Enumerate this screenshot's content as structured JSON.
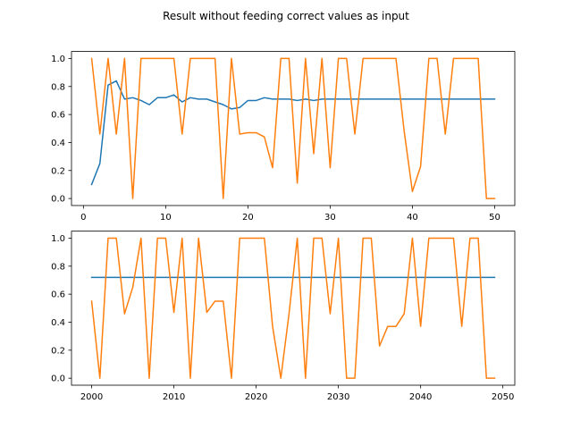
{
  "figure": {
    "suptitle": "Result without feeding correct values as input"
  },
  "colors": {
    "series_1": "#1f77b4",
    "series_2": "#ff7f0e",
    "axes": "#000000",
    "background": "#ffffff"
  },
  "chart_data": [
    {
      "type": "line",
      "title": "",
      "xlabel": "",
      "ylabel": "",
      "xlim": [
        -1.45,
        52.45
      ],
      "ylim": [
        -0.05,
        1.05
      ],
      "xticks": [
        0,
        10,
        20,
        30,
        40,
        50
      ],
      "xtick_labels": [
        "0",
        "10",
        "20",
        "30",
        "40",
        "50"
      ],
      "yticks": [
        0.0,
        0.2,
        0.4,
        0.6,
        0.8,
        1.0
      ],
      "ytick_labels": [
        "0.0",
        "0.2",
        "0.4",
        "0.6",
        "0.8",
        "1.0"
      ],
      "grid": false,
      "x": [
        1,
        2,
        3,
        4,
        5,
        6,
        7,
        8,
        9,
        10,
        11,
        12,
        13,
        14,
        15,
        16,
        17,
        18,
        19,
        20,
        21,
        22,
        23,
        24,
        25,
        26,
        27,
        28,
        29,
        30,
        31,
        32,
        33,
        34,
        35,
        36,
        37,
        38,
        39,
        40,
        41,
        42,
        43,
        44,
        45,
        46,
        47,
        48,
        49,
        50
      ],
      "series": [
        {
          "color": "#1f77b4",
          "values": [
            0.1,
            0.25,
            0.81,
            0.84,
            0.71,
            0.72,
            0.7,
            0.67,
            0.72,
            0.72,
            0.74,
            0.69,
            0.72,
            0.71,
            0.71,
            0.69,
            0.67,
            0.64,
            0.65,
            0.7,
            0.7,
            0.72,
            0.71,
            0.71,
            0.71,
            0.7,
            0.71,
            0.7,
            0.71,
            0.71,
            0.71,
            0.71,
            0.71,
            0.71,
            0.71,
            0.71,
            0.71,
            0.71,
            0.71,
            0.71,
            0.71,
            0.71,
            0.71,
            0.71,
            0.71,
            0.71,
            0.71,
            0.71,
            0.71,
            0.71
          ]
        },
        {
          "color": "#ff7f0e",
          "values": [
            1.0,
            0.46,
            1.0,
            0.46,
            1.0,
            0.0,
            1.0,
            1.0,
            1.0,
            1.0,
            1.0,
            0.46,
            1.0,
            1.0,
            1.0,
            1.0,
            0.0,
            1.0,
            0.46,
            0.47,
            0.47,
            0.44,
            0.22,
            1.0,
            1.0,
            0.11,
            1.0,
            0.32,
            1.0,
            0.22,
            1.0,
            1.0,
            0.46,
            1.0,
            1.0,
            1.0,
            1.0,
            1.0,
            0.48,
            0.05,
            0.23,
            1.0,
            1.0,
            0.46,
            1.0,
            1.0,
            1.0,
            1.0,
            0.0,
            0.0
          ]
        }
      ]
    },
    {
      "type": "line",
      "title": "",
      "xlabel": "",
      "ylabel": "",
      "xlim": [
        1997.55,
        2051.45
      ],
      "ylim": [
        -0.05,
        1.05
      ],
      "xticks": [
        2000,
        2010,
        2020,
        2030,
        2040,
        2050
      ],
      "xtick_labels": [
        "2000",
        "2010",
        "2020",
        "2030",
        "2040",
        "2050"
      ],
      "yticks": [
        0.0,
        0.2,
        0.4,
        0.6,
        0.8,
        1.0
      ],
      "ytick_labels": [
        "0.0",
        "0.2",
        "0.4",
        "0.6",
        "0.8",
        "1.0"
      ],
      "grid": false,
      "x": [
        2000,
        2001,
        2002,
        2003,
        2004,
        2005,
        2006,
        2007,
        2008,
        2009,
        2010,
        2011,
        2012,
        2013,
        2014,
        2015,
        2016,
        2017,
        2018,
        2019,
        2020,
        2021,
        2022,
        2023,
        2024,
        2025,
        2026,
        2027,
        2028,
        2029,
        2030,
        2031,
        2032,
        2033,
        2034,
        2035,
        2036,
        2037,
        2038,
        2039,
        2040,
        2041,
        2042,
        2043,
        2044,
        2045,
        2046,
        2047,
        2048,
        2049
      ],
      "series": [
        {
          "color": "#1f77b4",
          "values": [
            0.72,
            0.72,
            0.72,
            0.72,
            0.72,
            0.72,
            0.72,
            0.72,
            0.72,
            0.72,
            0.72,
            0.72,
            0.72,
            0.72,
            0.72,
            0.72,
            0.72,
            0.72,
            0.72,
            0.72,
            0.72,
            0.72,
            0.72,
            0.72,
            0.72,
            0.72,
            0.72,
            0.72,
            0.72,
            0.72,
            0.72,
            0.72,
            0.72,
            0.72,
            0.72,
            0.72,
            0.72,
            0.72,
            0.72,
            0.72,
            0.72,
            0.72,
            0.72,
            0.72,
            0.72,
            0.72,
            0.72,
            0.72,
            0.72,
            0.72
          ]
        },
        {
          "color": "#ff7f0e",
          "values": [
            0.55,
            0.0,
            1.0,
            1.0,
            0.46,
            0.65,
            1.0,
            0.0,
            1.0,
            1.0,
            0.47,
            1.0,
            0.0,
            1.0,
            0.47,
            0.55,
            0.55,
            0.0,
            1.0,
            1.0,
            1.0,
            1.0,
            0.37,
            0.0,
            0.46,
            1.0,
            0.0,
            1.0,
            1.0,
            0.46,
            1.0,
            0.0,
            0.0,
            1.0,
            1.0,
            0.23,
            0.37,
            0.37,
            0.46,
            1.0,
            0.37,
            1.0,
            1.0,
            1.0,
            1.0,
            0.37,
            1.0,
            1.0,
            0.0,
            0.0
          ]
        }
      ]
    }
  ]
}
